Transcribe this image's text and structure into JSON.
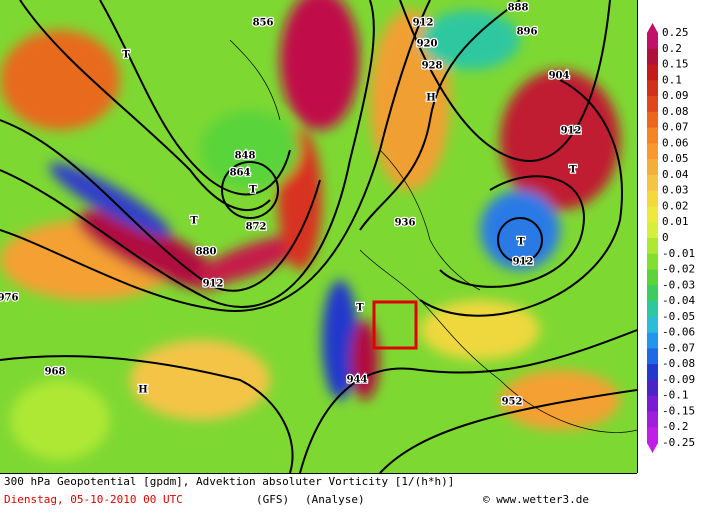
{
  "colorbar": {
    "labels": [
      "0.25",
      "0.2",
      "0.15",
      "0.1",
      "0.09",
      "0.08",
      "0.07",
      "0.06",
      "0.05",
      "0.04",
      "0.03",
      "0.02",
      "0.01",
      "0",
      "-0.01",
      "-0.02",
      "-0.03",
      "-0.04",
      "-0.05",
      "-0.06",
      "-0.07",
      "-0.08",
      "-0.09",
      "-0.1",
      "-0.15",
      "-0.2",
      "-0.25"
    ],
    "colors": [
      "#c0106a",
      "#b0103c",
      "#c41a1a",
      "#d2301c",
      "#e0481c",
      "#ec661e",
      "#f48424",
      "#f8982e",
      "#f6ae3a",
      "#f4c446",
      "#f4d83c",
      "#eeea3c",
      "#d4f03c",
      "#aee834",
      "#84de30",
      "#5ad43a",
      "#3ccc62",
      "#2ec8a0",
      "#2abcd8",
      "#2296ee",
      "#1e6ae6",
      "#2438cc",
      "#4a24c4",
      "#7a1cd4",
      "#a01edc",
      "#c020e6"
    ]
  },
  "map_labels": [
    "912",
    "912",
    "912",
    "912",
    "920",
    "928",
    "936",
    "944",
    "952",
    "968",
    "976",
    "880",
    "872",
    "864",
    "856",
    "848",
    "904",
    "896",
    "888",
    "T",
    "T",
    "T",
    "T",
    "T",
    "T",
    "H",
    "H"
  ],
  "footer": {
    "title": "300 hPa Geopotential [gpdm], Advektion absoluter Vorticity [1/(h*h)]",
    "date": "Dienstag, 05-10-2010  00 UTC",
    "model": "(GFS)",
    "run": "(Analyse)",
    "credit": "© www.wetter3.de"
  }
}
